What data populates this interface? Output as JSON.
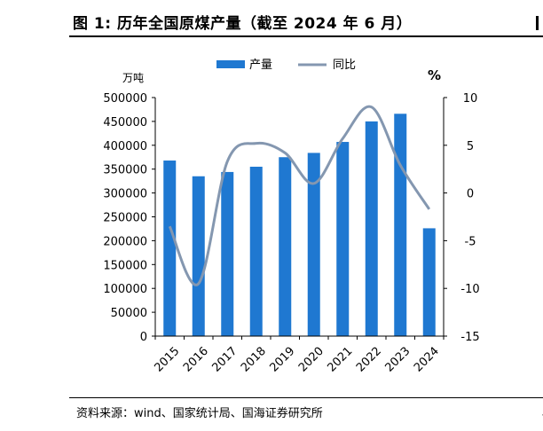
{
  "header": {
    "title": "图 1:  历年全国原煤产量（截至 2024 年 6 月）"
  },
  "footer": {
    "source": "资料来源：wind、国家统计局、国海证券研究所"
  },
  "chart_data": {
    "type": "bar",
    "categories": [
      "2015",
      "2016",
      "2017",
      "2018",
      "2019",
      "2020",
      "2021",
      "2022",
      "2023",
      "2024"
    ],
    "series": [
      {
        "name": "产量",
        "type": "bar",
        "axis": "left",
        "color": "#1f78d1",
        "values": [
          368000,
          335000,
          344000,
          355000,
          375000,
          384000,
          407000,
          450000,
          466000,
          226000
        ]
      },
      {
        "name": "同比",
        "type": "line",
        "axis": "right",
        "color": "#8497b0",
        "values": [
          -3.5,
          -9.5,
          3.3,
          5.2,
          4.2,
          1.0,
          5.7,
          9.0,
          2.9,
          -1.7
        ]
      }
    ],
    "yleft": {
      "label": "万吨",
      "lim": [
        0,
        500000
      ],
      "ticks": [
        "0",
        "50000",
        "100000",
        "150000",
        "200000",
        "250000",
        "300000",
        "350000",
        "400000",
        "450000",
        "500000"
      ]
    },
    "yright": {
      "label": "%",
      "lim": [
        -15,
        10
      ],
      "ticks": [
        "-15",
        "-10",
        "-5",
        "0",
        "5",
        "10"
      ]
    },
    "legend": {
      "placement": "top-center"
    },
    "grid": false
  }
}
